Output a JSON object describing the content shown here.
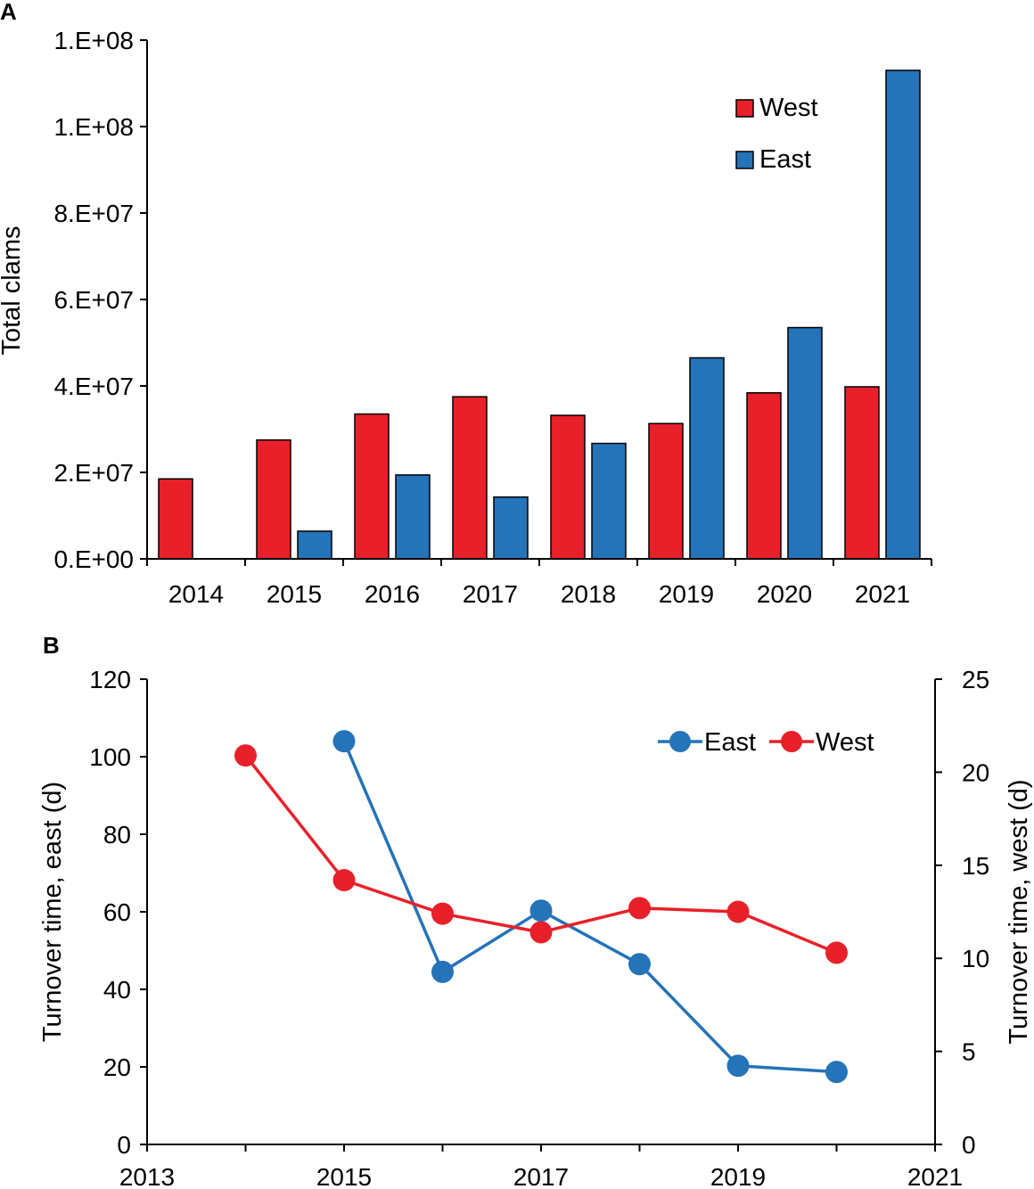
{
  "panels": {
    "a_label": "A",
    "b_label": "B"
  },
  "colors": {
    "west": "#e8202a",
    "east": "#2573b8"
  },
  "chart_data": [
    {
      "type": "bar",
      "panel": "A",
      "title": "",
      "xlabel": "",
      "ylabel": "Total clams",
      "ylim": [
        0,
        120000000
      ],
      "yticks": [
        0,
        20000000,
        40000000,
        60000000,
        80000000,
        100000000,
        120000000
      ],
      "ytick_labels": [
        "0.E+00",
        "2.E+07",
        "4.E+07",
        "6.E+07",
        "8.E+07",
        "1.E+08",
        "1.E+08"
      ],
      "categories": [
        "2014",
        "2015",
        "2016",
        "2017",
        "2018",
        "2019",
        "2020",
        "2021"
      ],
      "series": [
        {
          "name": "West",
          "color": "#e8202a",
          "values": [
            18500000,
            27500000,
            33500000,
            37500000,
            33200000,
            31300000,
            38400000,
            39800000
          ]
        },
        {
          "name": "East",
          "color": "#2573b8",
          "values": [
            null,
            6400000,
            19400000,
            14300000,
            26700000,
            46500000,
            53500000,
            113000000
          ]
        }
      ],
      "legend": {
        "placement": "top-right",
        "entries": [
          "West",
          "East"
        ]
      }
    },
    {
      "type": "line",
      "panel": "B",
      "title": "",
      "xlabel": "",
      "ylabel": "Turnover time, east (d)",
      "ylabel_right": "Turnover time, west (d)",
      "xlim": [
        2013,
        2021
      ],
      "xticks": [
        2013,
        2015,
        2017,
        2019,
        2021
      ],
      "xtick_labels": [
        "2013",
        "2015",
        "2017",
        "2019",
        "2021"
      ],
      "ylim": [
        0,
        120
      ],
      "yticks": [
        0,
        20,
        40,
        60,
        80,
        100,
        120
      ],
      "ytick_labels": [
        "0",
        "20",
        "40",
        "60",
        "80",
        "100",
        "120"
      ],
      "ylim_right": [
        0,
        25
      ],
      "yticks_right": [
        0,
        5,
        10,
        15,
        20,
        25
      ],
      "ytick_labels_right": [
        "0",
        "5",
        "10",
        "15",
        "20",
        "25"
      ],
      "series": [
        {
          "name": "East",
          "axis": "left",
          "color": "#2573b8",
          "x": [
            2015,
            2016,
            2017,
            2018,
            2019,
            2020
          ],
          "y": [
            104,
            44.5,
            60.3,
            46.5,
            20.3,
            18.7
          ]
        },
        {
          "name": "West",
          "axis": "right",
          "color": "#e8202a",
          "x": [
            2014,
            2015,
            2016,
            2017,
            2018,
            2019,
            2020
          ],
          "y": [
            20.9,
            14.2,
            12.4,
            11.4,
            12.7,
            12.5,
            10.3
          ]
        }
      ],
      "legend": {
        "placement": "top-right",
        "entries": [
          "East",
          "West"
        ]
      }
    }
  ]
}
